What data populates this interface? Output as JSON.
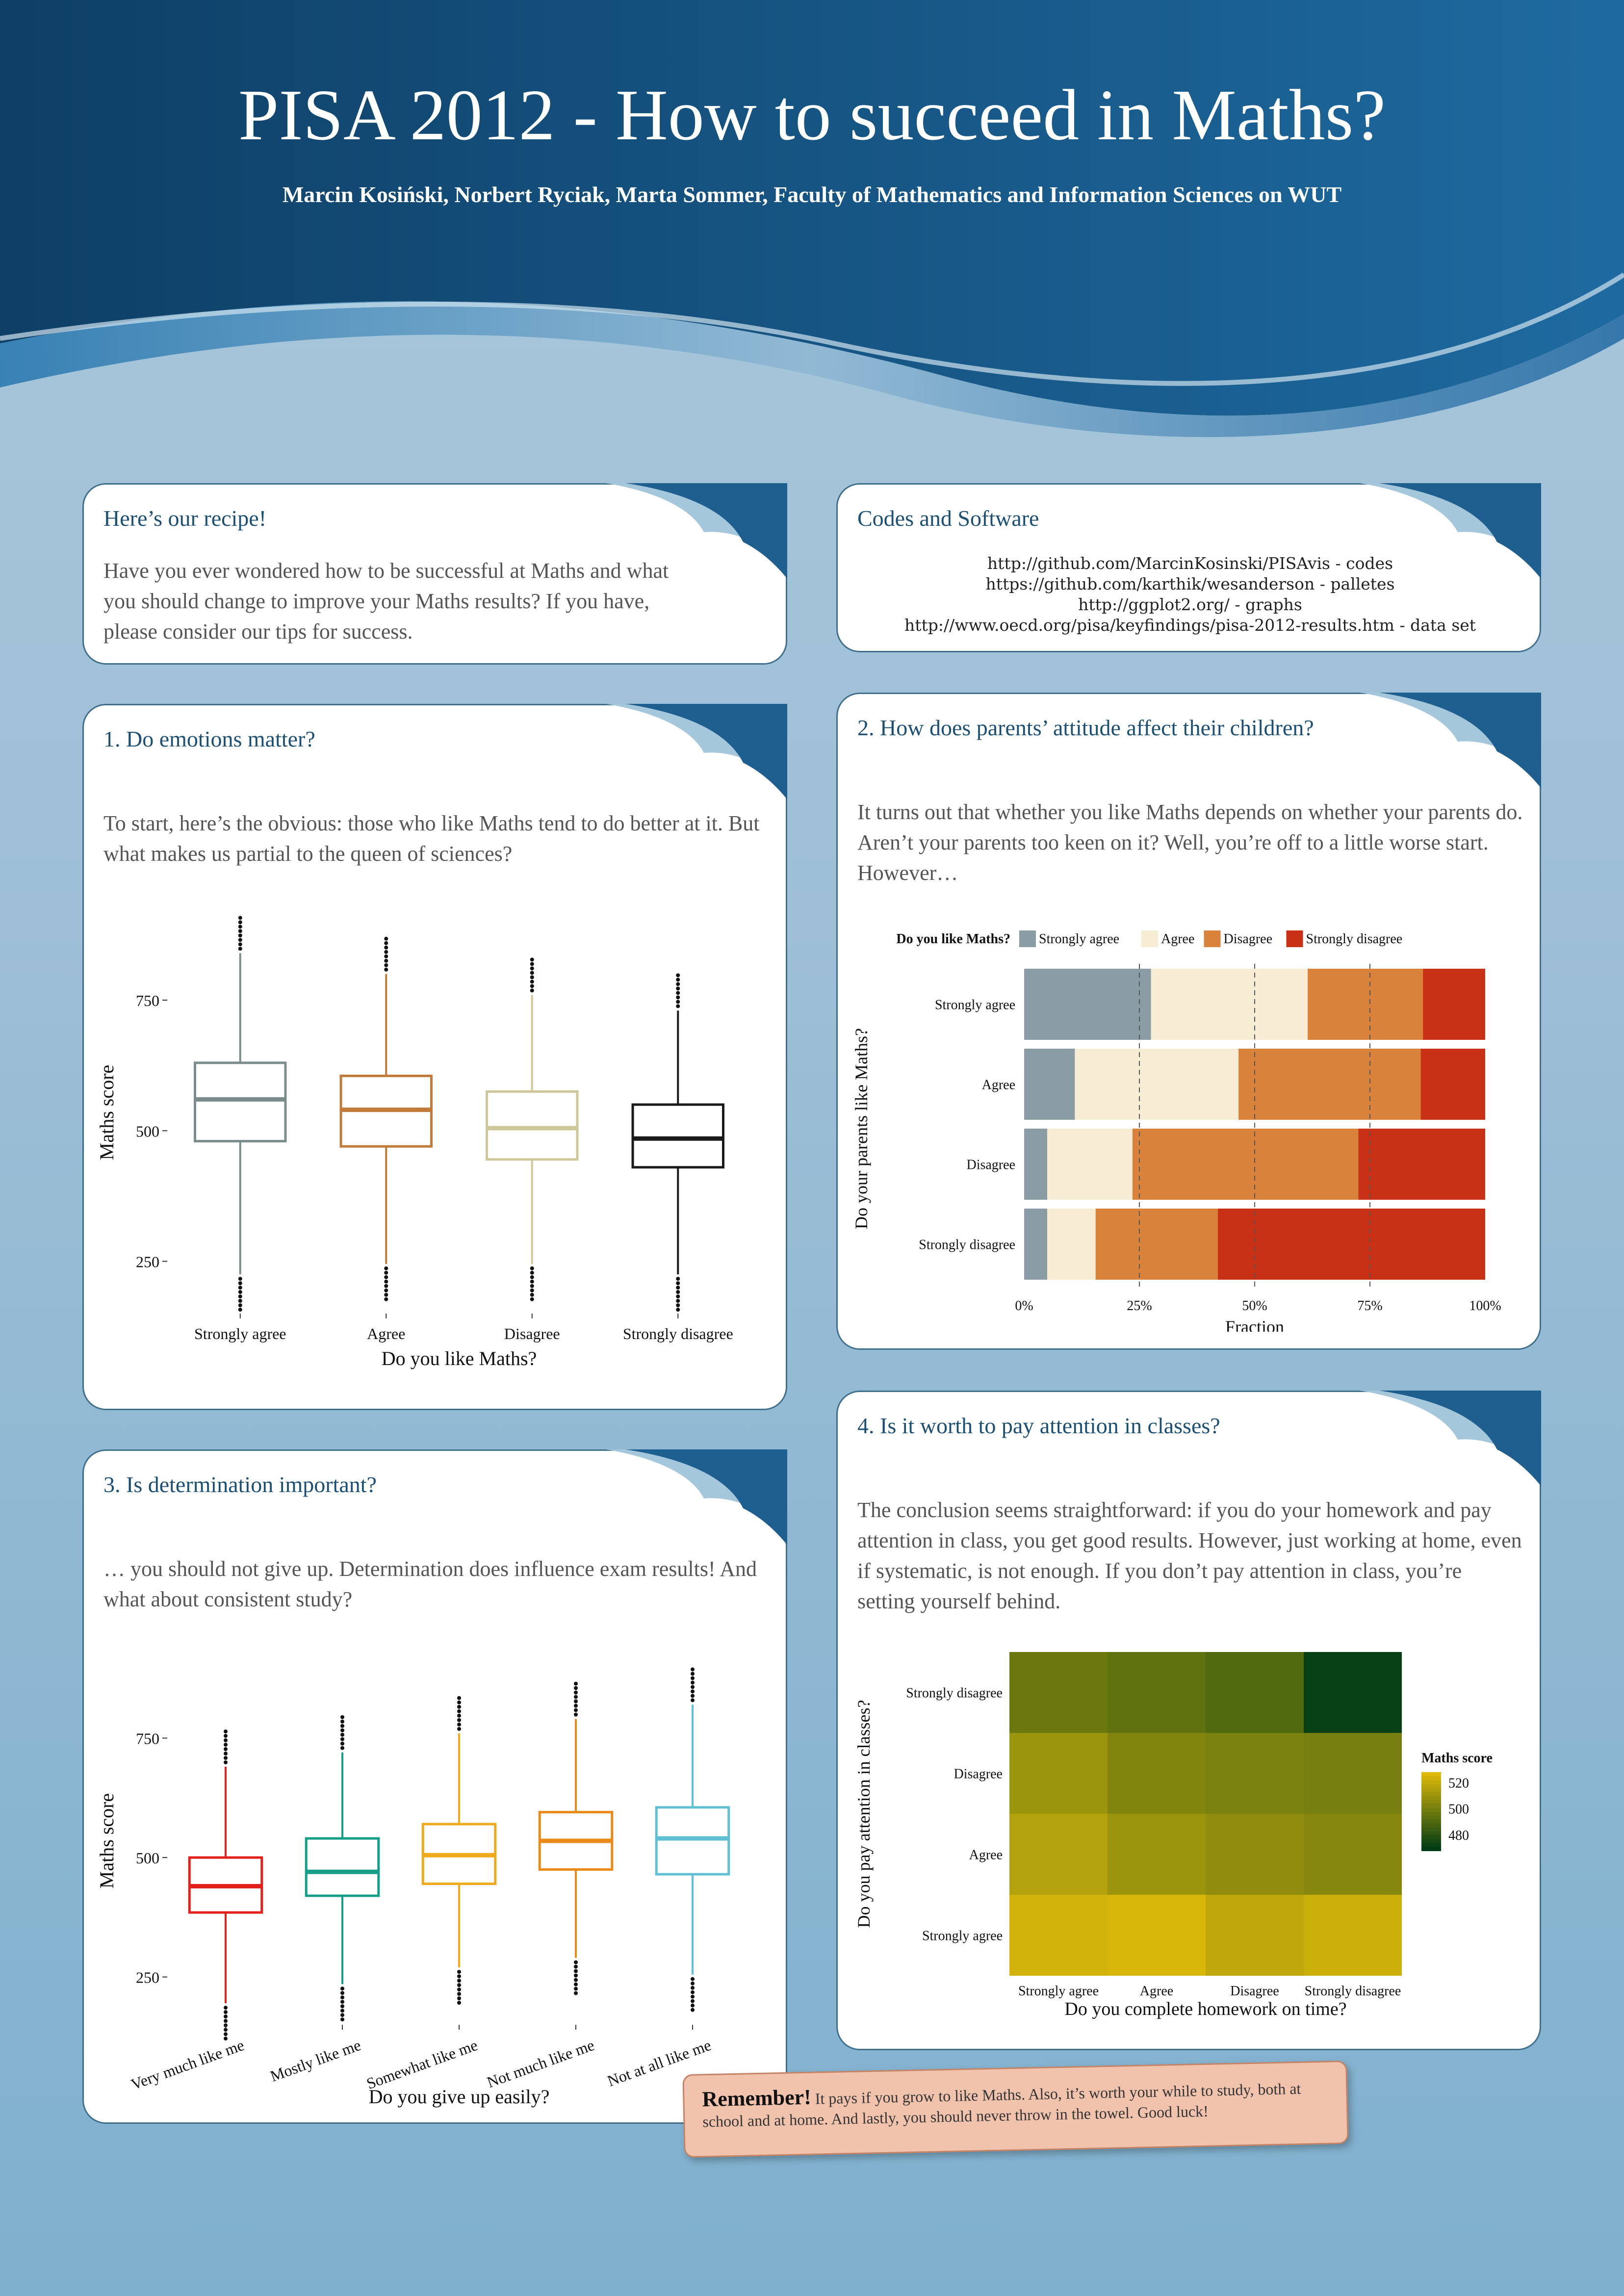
{
  "header": {
    "title": "PISA 2012 - How to succeed in Maths?",
    "authors": "Marcin Kosiński, Norbert Ryciak, Marta Sommer, Faculty of Mathematics and Information Sciences on WUT"
  },
  "recipe": {
    "heading": "Here’s our recipe!",
    "text": "Have you ever wondered how to be successful at Maths and what you should change to improve your Maths results? If you have, please consider our tips for success."
  },
  "codes": {
    "heading": "Codes and Software",
    "lines": [
      "http://github.com/MarcinKosinski/PISAvis - codes",
      "https://github.com/karthik/wesanderson - palletes",
      "http://ggplot2.org/ - graphs",
      "http://www.oecd.org/pisa/keyfindings/pisa-2012-results.htm - data set"
    ]
  },
  "section1": {
    "heading": "1. Do emotions matter?",
    "text": "To start, here’s the obvious: those who like Maths tend to do better at it. But what makes us partial to the queen of sciences?"
  },
  "section2": {
    "heading": "2. How does parents’ attitude affect their children?",
    "text": "It turns out that whether you like Maths depends on whether your parents do. Aren’t your parents too keen on it? Well, you’re off to a little worse start. However…"
  },
  "section3": {
    "heading": "3. Is determination important?",
    "text": "… you should not give up. Determination does influence exam results! And what about consistent study?"
  },
  "section4": {
    "heading": "4. Is it worth to pay attention in classes?",
    "text": "The conclusion seems straightforward: if you do your homework and pay attention in class, you get good results. However, just working at home, even if systematic, is not enough. If you don’t pay attention in class, you’re setting yourself behind."
  },
  "remember": {
    "label": "Remember!",
    "text": "It pays if you grow to like Maths. Also, it’s worth your while to study, both at school and at home. And lastly, you should never throw in the towel. Good luck!"
  },
  "chart_data": [
    {
      "type": "boxplot",
      "xlabel": "Do you like Maths?",
      "ylabel": "Maths score",
      "ylim": [
        150,
        920
      ],
      "yticks": [
        250,
        500,
        750
      ],
      "categories": [
        "Strongly agree",
        "Agree",
        "Disagree",
        "Strongly disagree"
      ],
      "colors": [
        "#7a8c8c",
        "#c27a3a",
        "#cfc79a",
        "#1a1a1a"
      ],
      "boxes": [
        {
          "min": 225,
          "q1": 480,
          "median": 560,
          "q3": 630,
          "max": 840
        },
        {
          "min": 245,
          "q1": 470,
          "median": 540,
          "q3": 605,
          "max": 800
        },
        {
          "min": 245,
          "q1": 445,
          "median": 505,
          "q3": 575,
          "max": 760
        },
        {
          "min": 225,
          "q1": 430,
          "median": 485,
          "q3": 550,
          "max": 730
        }
      ]
    },
    {
      "type": "bar",
      "stacked": "horizontal-percent",
      "legend_title": "Do you like Maths?",
      "legend_placement": "top",
      "xlabel": "Fraction",
      "ylabel": "Do your parents like Maths?",
      "xticks": [
        "0%",
        "25%",
        "50%",
        "75%",
        "100%"
      ],
      "categories": [
        "Strongly agree",
        "Agree",
        "Disagree",
        "Strongly disagree"
      ],
      "series": [
        {
          "name": "Strongly agree",
          "color": "#8a9ca4",
          "values": [
            0.275,
            0.11,
            0.05,
            0.05
          ]
        },
        {
          "name": "Agree",
          "color": "#f6edd4",
          "values": [
            0.34,
            0.355,
            0.185,
            0.105
          ]
        },
        {
          "name": "Disagree",
          "color": "#d9823c",
          "values": [
            0.25,
            0.395,
            0.49,
            0.265
          ]
        },
        {
          "name": "Strongly disagree",
          "color": "#c93116",
          "values": [
            0.135,
            0.14,
            0.275,
            0.58
          ]
        }
      ]
    },
    {
      "type": "boxplot",
      "xlabel": "Do you give up easily?",
      "ylabel": "Maths score",
      "ylim": [
        150,
        920
      ],
      "yticks": [
        250,
        500,
        750
      ],
      "categories": [
        "Very much like me",
        "Mostly like me",
        "Somewhat like me",
        "Not much like me",
        "Not at all like me"
      ],
      "colors": [
        "#e2201c",
        "#169e88",
        "#eeaa1a",
        "#ea8a18",
        "#5ec0d2"
      ],
      "boxes": [
        {
          "min": 195,
          "q1": 385,
          "median": 440,
          "q3": 500,
          "max": 690
        },
        {
          "min": 235,
          "q1": 420,
          "median": 470,
          "q3": 540,
          "max": 720
        },
        {
          "min": 270,
          "q1": 445,
          "median": 505,
          "q3": 570,
          "max": 760
        },
        {
          "min": 290,
          "q1": 475,
          "median": 535,
          "q3": 595,
          "max": 790
        },
        {
          "min": 255,
          "q1": 465,
          "median": 540,
          "q3": 605,
          "max": 820
        }
      ]
    },
    {
      "type": "heatmap",
      "xlabel": "Do you complete homework on time?",
      "ylabel": "Do you pay attention in classes?",
      "x": [
        "Strongly agree",
        "Agree",
        "Disagree",
        "Strongly disagree"
      ],
      "y": [
        "Strongly disagree",
        "Disagree",
        "Agree",
        "Strongly agree"
      ],
      "legend_title": "Maths score",
      "legend_ticks": [
        520,
        500,
        480
      ],
      "values": [
        [
          497,
          494,
          490,
          470
        ],
        [
          510,
          503,
          501,
          500
        ],
        [
          517,
          510,
          507,
          504
        ],
        [
          525,
          527,
          520,
          523
        ]
      ]
    }
  ]
}
